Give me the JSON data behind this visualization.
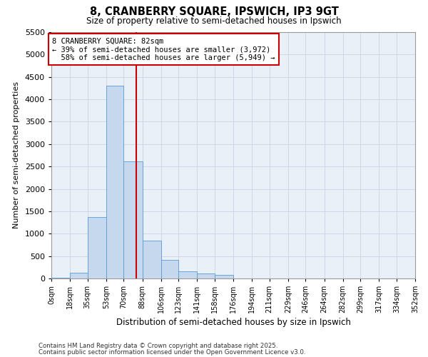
{
  "title1": "8, CRANBERRY SQUARE, IPSWICH, IP3 9GT",
  "title2": "Size of property relative to semi-detached houses in Ipswich",
  "xlabel": "Distribution of semi-detached houses by size in Ipswich",
  "ylabel": "Number of semi-detached properties",
  "property_size": 82,
  "pct_smaller": 39,
  "pct_larger": 58,
  "n_smaller": 3972,
  "n_larger": 5949,
  "property_label": "8 CRANBERRY SQUARE: 82sqm",
  "bin_edges": [
    0,
    18,
    35,
    53,
    70,
    88,
    106,
    123,
    141,
    158,
    176,
    194,
    211,
    229,
    246,
    264,
    282,
    299,
    317,
    334,
    352
  ],
  "bin_labels": [
    "0sqm",
    "18sqm",
    "35sqm",
    "53sqm",
    "70sqm",
    "88sqm",
    "106sqm",
    "123sqm",
    "141sqm",
    "158sqm",
    "176sqm",
    "194sqm",
    "211sqm",
    "229sqm",
    "246sqm",
    "264sqm",
    "282sqm",
    "299sqm",
    "317sqm",
    "334sqm",
    "352sqm"
  ],
  "bar_heights": [
    15,
    120,
    1370,
    4300,
    2620,
    840,
    420,
    165,
    110,
    80,
    0,
    0,
    0,
    0,
    0,
    0,
    0,
    0,
    0,
    0
  ],
  "bar_color": "#c5d8ed",
  "bar_edge_color": "#5b9bd5",
  "grid_color": "#d0d8e8",
  "background_color": "#eaf0f8",
  "vline_color": "#cc0000",
  "vline_x": 82,
  "box_color": "#cc0000",
  "ylim": [
    0,
    5500
  ],
  "yticks": [
    0,
    500,
    1000,
    1500,
    2000,
    2500,
    3000,
    3500,
    4000,
    4500,
    5000,
    5500
  ],
  "footnote1": "Contains HM Land Registry data © Crown copyright and database right 2025.",
  "footnote2": "Contains public sector information licensed under the Open Government Licence v3.0."
}
